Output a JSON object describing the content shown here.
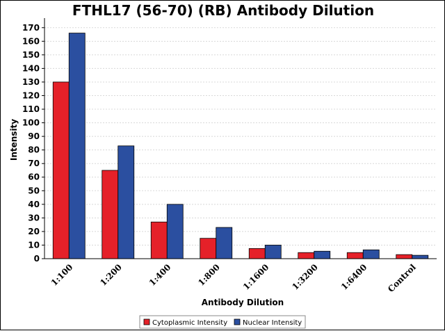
{
  "chart_data": {
    "type": "bar",
    "title": "FTHL17 (56-70) (RB) Antibody Dilution",
    "xlabel": "Antibody Dilution",
    "ylabel": "Intensity",
    "categories": [
      "1:100",
      "1:200",
      "1:400",
      "1:800",
      "1:1600",
      "1:3200",
      "1:6400",
      "Control"
    ],
    "series": [
      {
        "name": "Cytoplasmic Intensity",
        "color": "#e52129",
        "values": [
          130,
          65,
          27,
          15,
          7.5,
          4.5,
          4.5,
          3
        ]
      },
      {
        "name": "Nuclear Intensity",
        "color": "#2b4fa0",
        "values": [
          166,
          83,
          40,
          23,
          10,
          5.5,
          6.5,
          2.5
        ]
      }
    ],
    "ylim": [
      0,
      175
    ],
    "yticks": [
      0,
      10,
      20,
      30,
      40,
      50,
      60,
      70,
      80,
      90,
      100,
      110,
      120,
      130,
      140,
      150,
      160,
      170
    ],
    "grid": true,
    "legend_position": "bottom"
  }
}
